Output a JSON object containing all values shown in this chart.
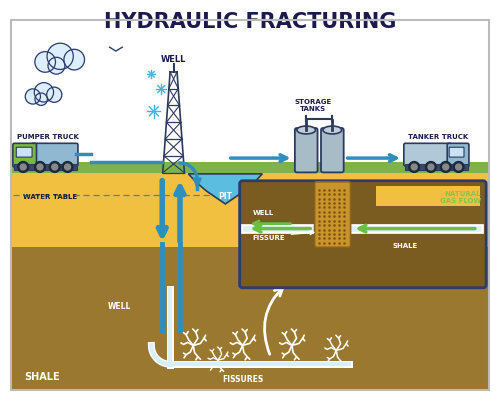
{
  "title": "HYDRAULIC FRACTURING",
  "title_fontsize": 15,
  "title_weight": "bold",
  "title_color": "#1a1a4e",
  "bg_color": "#ffffff",
  "ground_surface_color": "#7db34a",
  "sand_layer_color": "#f2c040",
  "shale_color": "#9b7830",
  "shale_dark": "#6b4f10",
  "pit_color": "#5bbde0",
  "arrow_color": "#2d8fbf",
  "green_arrow": "#6abf45",
  "inset_bg": "#7a5c20",
  "inset_border": "#2d3a6e",
  "labels": {
    "title": "HYDRAULIC FRACTURING",
    "well": "WELL",
    "pumper_truck": "PUMPER TRUCK",
    "water_table": "WATER TABLE",
    "pit": "PIT",
    "storage_tanks": "STORAGE\nTANKS",
    "tanker_truck": "TANKER TRUCK",
    "shale_main": "SHALE",
    "well_underground": "WELL",
    "fissures_label": "FISSURES",
    "inset_well": "WELL",
    "inset_fissure": "FISSURE",
    "inset_shale": "SHALE",
    "inset_gas": "NATURAL\nGAS FLOW"
  },
  "truck_green": "#7ab840",
  "truck_blue_light": "#90b8d0",
  "tank_color": "#a8bcc8",
  "derrick_color": "#2d3a5e",
  "cloud_fill": "#ddeeff",
  "cloud_edge": "#2d3a6e"
}
